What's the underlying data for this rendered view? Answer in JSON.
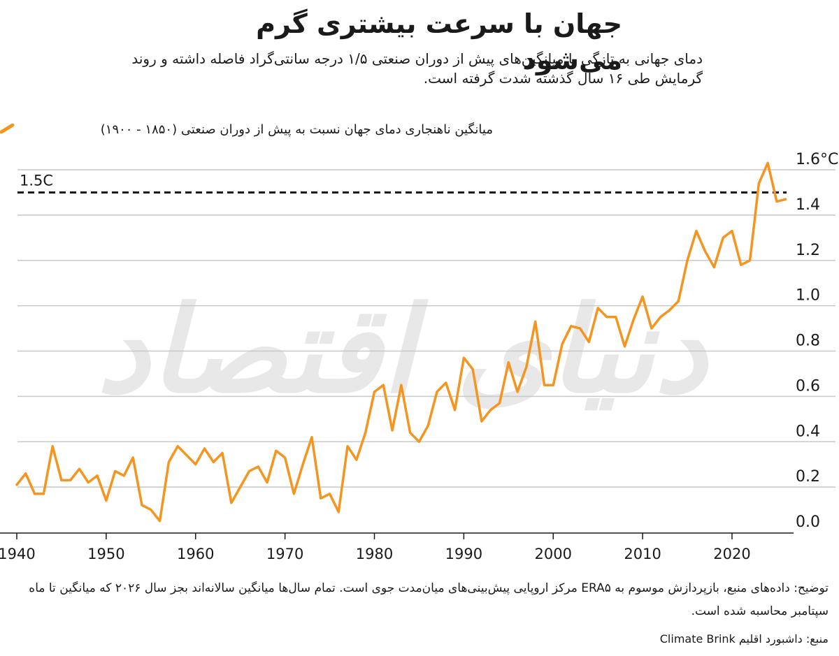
{
  "header": {
    "title": "جهان با سرعت بیشتری گرم می‌شود",
    "subtitle": "دمای جهانی به تازگی با میانگین‌های پیش از دوران صنعتی ۱/۵ درجه سانتی‌گراد فاصله داشته و روند گرمایش طی ۱۶ سال گذشته شدت گرفته است."
  },
  "legend": {
    "label": "میانگین ناهنجاری دمای جهان نسبت به پیش از دوران صنعتی (۱۸۵۰ - ۱۹۰۰)"
  },
  "footer": {
    "note": "توضیح: داده‌های منبع، بازپردازش موسوم به ERA۵ مرکز اروپایی پیش‌بینی‌های میان‌مدت جوی است. تمام سال‌ها میانگین سالانه‌اند بجز سال ۲۰۲۶ که میانگین تا ماه سپتامبر محاسبه شده است.",
    "source": "منبع: داشبورد اقلیم Climate Brink"
  },
  "watermark": "دنیای اقتصاد",
  "colors": {
    "series": "#f5951f",
    "grid": "#c8c8c8",
    "threshold": "#1a1a1a",
    "watermark": "#e8e8e8"
  },
  "chart_data": {
    "type": "line",
    "title": "جهان با سرعت بیشتری گرم می‌شود",
    "xlabel": "",
    "ylabel": "",
    "xlim": [
      1940,
      2026
    ],
    "ylim": [
      0.0,
      1.6
    ],
    "x_ticks": [
      1940,
      1950,
      1960,
      1970,
      1980,
      1990,
      2000,
      2010,
      2020
    ],
    "y_ticks": [
      0.0,
      0.2,
      0.4,
      0.6,
      0.8,
      1.0,
      1.2,
      1.4,
      1.6
    ],
    "y_tick_labels": [
      "0.0",
      "0.2",
      "0.4",
      "0.6",
      "0.8",
      "1.0",
      "1.2",
      "1.4",
      "1.6°C"
    ],
    "grid": "horizontal",
    "legend_position": "top",
    "threshold": {
      "value": 1.5,
      "label": "1.5C"
    },
    "series": [
      {
        "name": "میانگین ناهنجاری دمای جهان نسبت به پیش از دوران صنعتی (۱۸۵۰ - ۱۹۰۰)",
        "x": [
          1940,
          1941,
          1942,
          1943,
          1944,
          1945,
          1946,
          1947,
          1948,
          1949,
          1950,
          1951,
          1952,
          1953,
          1954,
          1955,
          1956,
          1957,
          1958,
          1959,
          1960,
          1961,
          1962,
          1963,
          1964,
          1965,
          1966,
          1967,
          1968,
          1969,
          1970,
          1971,
          1972,
          1973,
          1974,
          1975,
          1976,
          1977,
          1978,
          1979,
          1980,
          1981,
          1982,
          1983,
          1984,
          1985,
          1986,
          1987,
          1988,
          1989,
          1990,
          1991,
          1992,
          1993,
          1994,
          1995,
          1996,
          1997,
          1998,
          1999,
          2000,
          2001,
          2002,
          2003,
          2004,
          2005,
          2006,
          2007,
          2008,
          2009,
          2010,
          2011,
          2012,
          2013,
          2014,
          2015,
          2016,
          2017,
          2018,
          2019,
          2020,
          2021,
          2022,
          2023,
          2024,
          2025,
          2026
        ],
        "y": [
          0.21,
          0.26,
          0.17,
          0.17,
          0.38,
          0.23,
          0.23,
          0.28,
          0.22,
          0.25,
          0.14,
          0.27,
          0.25,
          0.33,
          0.12,
          0.1,
          0.05,
          0.31,
          0.38,
          0.34,
          0.3,
          0.37,
          0.31,
          0.35,
          0.13,
          0.2,
          0.27,
          0.29,
          0.22,
          0.36,
          0.33,
          0.17,
          0.3,
          0.42,
          0.15,
          0.17,
          0.09,
          0.38,
          0.32,
          0.44,
          0.62,
          0.65,
          0.45,
          0.65,
          0.44,
          0.4,
          0.47,
          0.62,
          0.66,
          0.54,
          0.77,
          0.72,
          0.49,
          0.54,
          0.57,
          0.75,
          0.62,
          0.73,
          0.93,
          0.65,
          0.65,
          0.83,
          0.91,
          0.9,
          0.84,
          0.99,
          0.95,
          0.95,
          0.82,
          0.94,
          1.04,
          0.9,
          0.95,
          0.98,
          1.02,
          1.2,
          1.33,
          1.24,
          1.17,
          1.3,
          1.33,
          1.18,
          1.2,
          1.54,
          1.63,
          1.46,
          1.47
        ]
      }
    ]
  }
}
